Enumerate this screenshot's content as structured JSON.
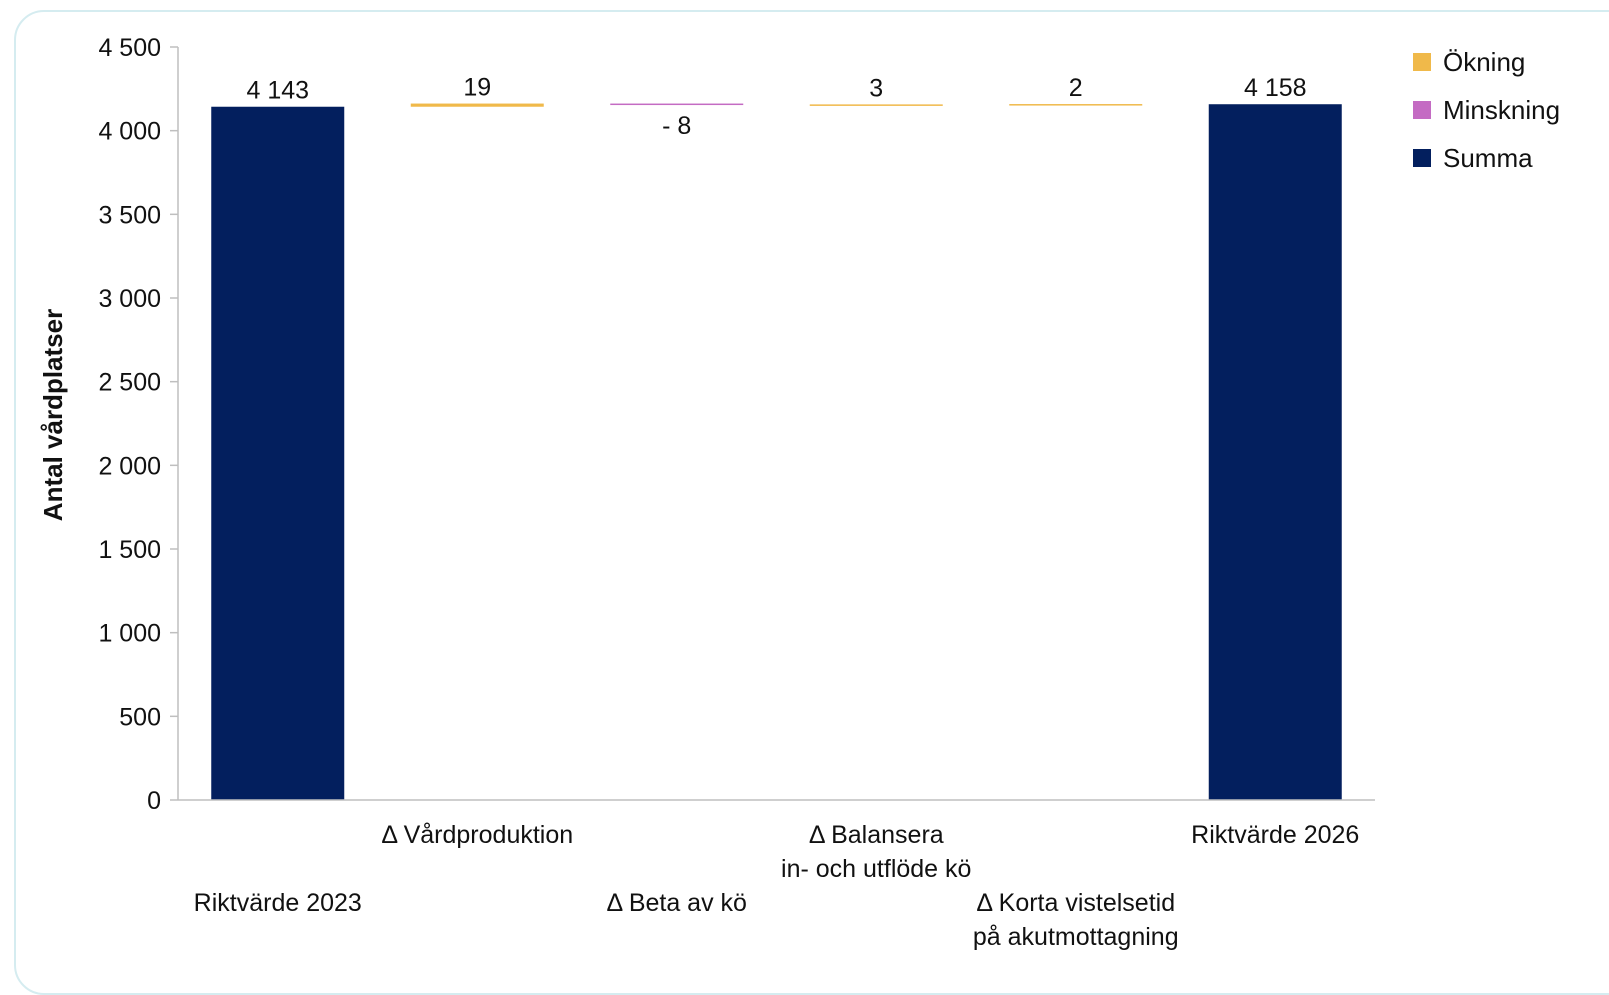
{
  "chart_data": {
    "type": "bar",
    "subtype": "waterfall",
    "ylabel": "Antal vårdplatser",
    "ylim": [
      0,
      4500
    ],
    "yticks": [
      0,
      500,
      1000,
      1500,
      2000,
      2500,
      3000,
      3500,
      4000,
      4500
    ],
    "ytick_labels": [
      "0",
      "500",
      "1 000",
      "1 500",
      "2 000",
      "2 500",
      "3 000",
      "3 500",
      "4 000",
      "4 500"
    ],
    "categories": [
      [
        "Riktvärde 2023"
      ],
      [
        "Δ Vårdproduktion"
      ],
      [
        "Δ Beta av kö"
      ],
      [
        "Δ Balansera",
        "in- och utflöde kö"
      ],
      [
        "Δ Korta vistelsetid",
        "på akutmottagning"
      ],
      [
        "Riktvärde 2026"
      ]
    ],
    "bars": [
      {
        "kind": "total",
        "value": 4143,
        "label": "4 143"
      },
      {
        "kind": "increase",
        "value": 19,
        "label": "19"
      },
      {
        "kind": "decrease",
        "value": -8,
        "label": "- 8"
      },
      {
        "kind": "increase",
        "value": 3,
        "label": "3"
      },
      {
        "kind": "increase",
        "value": 2,
        "label": "2"
      },
      {
        "kind": "total",
        "value": 4158,
        "label": "4 158"
      }
    ],
    "legend": [
      {
        "key": "increase",
        "label": "Ökning",
        "color": "#f0b94a"
      },
      {
        "key": "decrease",
        "label": "Minskning",
        "color": "#c46bc3"
      },
      {
        "key": "total",
        "label": "Summa",
        "color": "#031f5e"
      }
    ],
    "legend_position": "top-right",
    "grid": false
  }
}
